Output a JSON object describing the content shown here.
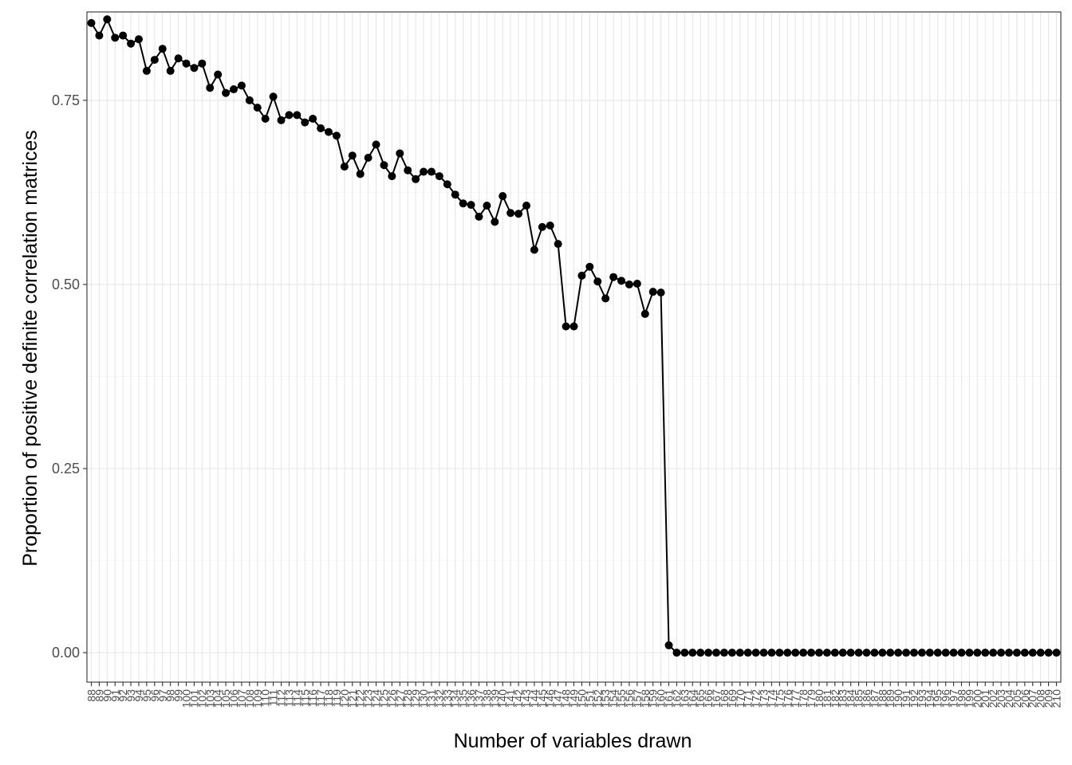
{
  "chart_data": {
    "type": "line",
    "xlabel": "Number of variables drawn",
    "ylabel": "Proportion of positive definite correlation matrices",
    "x_axis_type": "categorical",
    "ylim": [
      -0.04,
      0.87
    ],
    "y_ticks": [
      0,
      0.25,
      0.5,
      0.75
    ],
    "y_tick_labels": [
      "0.00",
      "0.25",
      "0.50",
      "0.75"
    ],
    "grid": true,
    "legend": "none",
    "categories": [
      "88",
      "89",
      "90",
      "91",
      "92",
      "93",
      "94",
      "95",
      "96",
      "97",
      "98",
      "99",
      "100",
      "101",
      "102",
      "103",
      "104",
      "105",
      "106",
      "107",
      "108",
      "109",
      "110",
      "111",
      "112",
      "113",
      "114",
      "115",
      "116",
      "117",
      "118",
      "119",
      "120",
      "121",
      "122",
      "123",
      "124",
      "125",
      "126",
      "127",
      "128",
      "129",
      "130",
      "131",
      "132",
      "133",
      "134",
      "135",
      "136",
      "137",
      "138",
      "139",
      "140",
      "141",
      "142",
      "143",
      "144",
      "145",
      "146",
      "147",
      "148",
      "149",
      "150",
      "151",
      "152",
      "153",
      "154",
      "155",
      "156",
      "157",
      "158",
      "159",
      "160",
      "161",
      "162",
      "163",
      "164",
      "165",
      "166",
      "167",
      "168",
      "169",
      "170",
      "171",
      "172",
      "173",
      "174",
      "175",
      "176",
      "177",
      "178",
      "179",
      "180",
      "181",
      "182",
      "183",
      "184",
      "185",
      "186",
      "187",
      "188",
      "189",
      "190",
      "191",
      "192",
      "193",
      "194",
      "195",
      "196",
      "197",
      "198",
      "199",
      "200",
      "201",
      "202",
      "203",
      "204",
      "205",
      "206",
      "207",
      "208",
      "209",
      "210"
    ],
    "values": [
      0.855,
      0.838,
      0.86,
      0.835,
      0.838,
      0.827,
      0.833,
      0.79,
      0.805,
      0.82,
      0.79,
      0.807,
      0.8,
      0.794,
      0.8,
      0.767,
      0.785,
      0.76,
      0.765,
      0.77,
      0.75,
      0.74,
      0.725,
      0.755,
      0.723,
      0.73,
      0.73,
      0.72,
      0.725,
      0.712,
      0.707,
      0.702,
      0.66,
      0.675,
      0.65,
      0.672,
      0.69,
      0.662,
      0.647,
      0.678,
      0.655,
      0.643,
      0.653,
      0.653,
      0.647,
      0.636,
      0.622,
      0.61,
      0.608,
      0.592,
      0.607,
      0.585,
      0.62,
      0.597,
      0.596,
      0.607,
      0.547,
      0.578,
      0.58,
      0.555,
      0.443,
      0.443,
      0.512,
      0.524,
      0.504,
      0.481,
      0.51,
      0.505,
      0.5,
      0.501,
      0.46,
      0.49,
      0.489,
      0.01,
      0,
      0,
      0,
      0,
      0,
      0,
      0,
      0,
      0,
      0,
      0,
      0,
      0,
      0,
      0,
      0,
      0,
      0,
      0,
      0,
      0,
      0,
      0,
      0,
      0,
      0,
      0,
      0,
      0,
      0,
      0,
      0,
      0,
      0,
      0,
      0,
      0,
      0,
      0,
      0,
      0,
      0,
      0,
      0,
      0,
      0,
      0,
      0,
      0
    ],
    "color": "#000000"
  }
}
